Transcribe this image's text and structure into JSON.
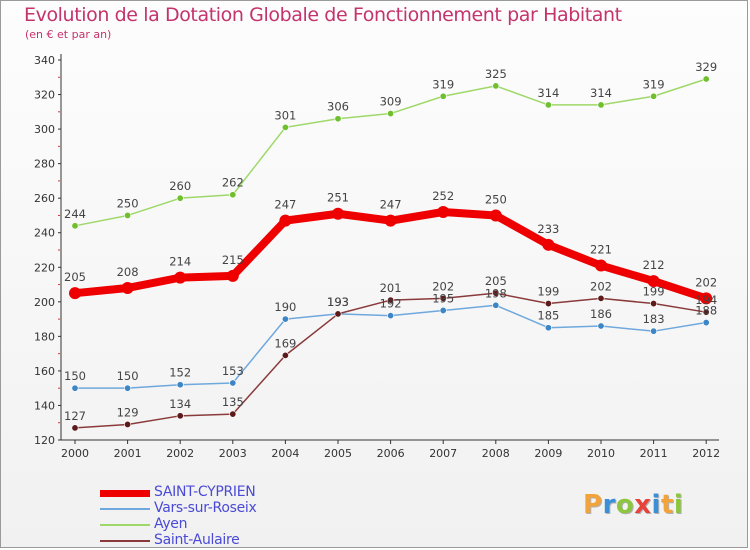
{
  "title": "Evolution de la Dotation Globale de Fonctionnement par Habitant",
  "subtitle": "(en € et par an)",
  "logo": {
    "text": "Proxiti",
    "letters": [
      "P",
      "r",
      "o",
      "x",
      "i",
      "t",
      "i"
    ],
    "colors": [
      "#f2a33a",
      "#3a8fd8",
      "#8cc63f",
      "#e8433a",
      "#3a8fd8",
      "#f2a33a",
      "#8cc63f"
    ]
  },
  "chart_data": {
    "type": "line",
    "title": "Evolution de la Dotation Globale de Fonctionnement par Habitant",
    "xlabel": "",
    "ylabel": "(en € et par an)",
    "ylim": [
      120,
      340
    ],
    "yticks": [
      120,
      140,
      160,
      180,
      200,
      220,
      240,
      260,
      280,
      300,
      320,
      340
    ],
    "grid": false,
    "legend_position": "bottom-left",
    "categories": [
      "2000",
      "2001",
      "2002",
      "2003",
      "2004",
      "2005",
      "2006",
      "2007",
      "2008",
      "2009",
      "2010",
      "2011",
      "2012"
    ],
    "series": [
      {
        "name": "Ayen",
        "color": "#9fd86a",
        "marker": "#6fbf2e",
        "values": [
          244,
          250,
          260,
          262,
          301,
          306,
          309,
          319,
          325,
          314,
          314,
          319,
          329
        ]
      },
      {
        "name": "Vars-sur-Roseix",
        "color": "#6fa8dc",
        "marker": "#3d86c6",
        "values": [
          150,
          150,
          152,
          153,
          190,
          193,
          192,
          195,
          198,
          185,
          186,
          183,
          188
        ]
      },
      {
        "name": "Saint-Aulaire",
        "color": "#8a3a3a",
        "marker": "#5c1a1a",
        "values": [
          127,
          129,
          134,
          135,
          169,
          193,
          201,
          202,
          205,
          199,
          202,
          199,
          194
        ]
      },
      {
        "name": "SAINT-CYPRIEN",
        "color": "#ee0000",
        "marker": "#ee0000",
        "bold": true,
        "values": [
          205,
          208,
          214,
          215,
          247,
          251,
          247,
          252,
          250,
          233,
          221,
          212,
          202
        ]
      }
    ],
    "legend_order": [
      "SAINT-CYPRIEN",
      "Vars-sur-Roseix",
      "Ayen",
      "Saint-Aulaire"
    ]
  }
}
